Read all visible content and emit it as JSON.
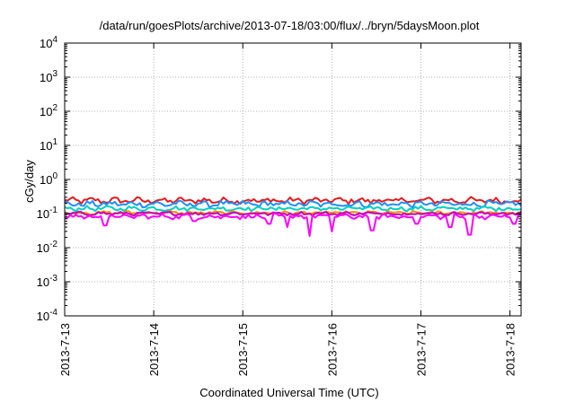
{
  "chart_data": {
    "type": "line",
    "title": "/data/run/goesPlots/archive/2013-07-18/03:00/flux/../bryn/5daysMoon.plot",
    "xlabel": "Coordinated Universal Time (UTC)",
    "ylabel": "cGy/day",
    "yscale": "log",
    "ylim": [
      0.0001,
      10000
    ],
    "xlim": [
      "2013-07-13 00:00",
      "2013-07-18 03:00"
    ],
    "grid": true,
    "legend": "none",
    "x_ticks": [
      "2013-7-13",
      "2013-7-14",
      "2013-7-15",
      "2013-7-16",
      "2013-7-17",
      "2013-7-18"
    ],
    "y_ticks": [
      {
        "value": 0.0001,
        "base": "10",
        "exp": "-4"
      },
      {
        "value": 0.001,
        "base": "10",
        "exp": "-3"
      },
      {
        "value": 0.01,
        "base": "10",
        "exp": "-2"
      },
      {
        "value": 0.1,
        "base": "10",
        "exp": "-1"
      },
      {
        "value": 1,
        "base": "10",
        "exp": "0"
      },
      {
        "value": 10,
        "base": "10",
        "exp": "1"
      },
      {
        "value": 100,
        "base": "10",
        "exp": "2"
      },
      {
        "value": 1000,
        "base": "10",
        "exp": "3"
      },
      {
        "value": 10000,
        "base": "10",
        "exp": "4"
      }
    ],
    "series": [
      {
        "color": "#e41a1c",
        "approx_level": 0.24,
        "variation": 0.22,
        "dips": []
      },
      {
        "color": "#1e90ff",
        "approx_level": 0.19,
        "variation": 0.22,
        "dips": []
      },
      {
        "color": "#00d0c0",
        "approx_level": 0.14,
        "variation": 0.16,
        "dips": []
      },
      {
        "color": "#ff8c00",
        "approx_level": 0.105,
        "variation": 0.12,
        "dips": []
      },
      {
        "color": "#c000c0",
        "approx_level": 0.1,
        "variation": 0.12,
        "dips": []
      },
      {
        "color": "#ff00ff",
        "approx_level": 0.082,
        "variation": 0.18,
        "dips": [
          {
            "x": "2013-07-13 11:00",
            "y": 0.045
          },
          {
            "x": "2013-07-14 11:00",
            "y": 0.06
          },
          {
            "x": "2013-07-15 07:00",
            "y": 0.05
          },
          {
            "x": "2013-07-15 12:00",
            "y": 0.04
          },
          {
            "x": "2013-07-15 18:00",
            "y": 0.022
          },
          {
            "x": "2013-07-16 00:00",
            "y": 0.03
          },
          {
            "x": "2013-07-16 11:00",
            "y": 0.032
          },
          {
            "x": "2013-07-16 23:00",
            "y": 0.05
          },
          {
            "x": "2013-07-17 08:00",
            "y": 0.04
          },
          {
            "x": "2013-07-17 13:00",
            "y": 0.024
          },
          {
            "x": "2013-07-18 01:00",
            "y": 0.05
          }
        ]
      }
    ]
  }
}
